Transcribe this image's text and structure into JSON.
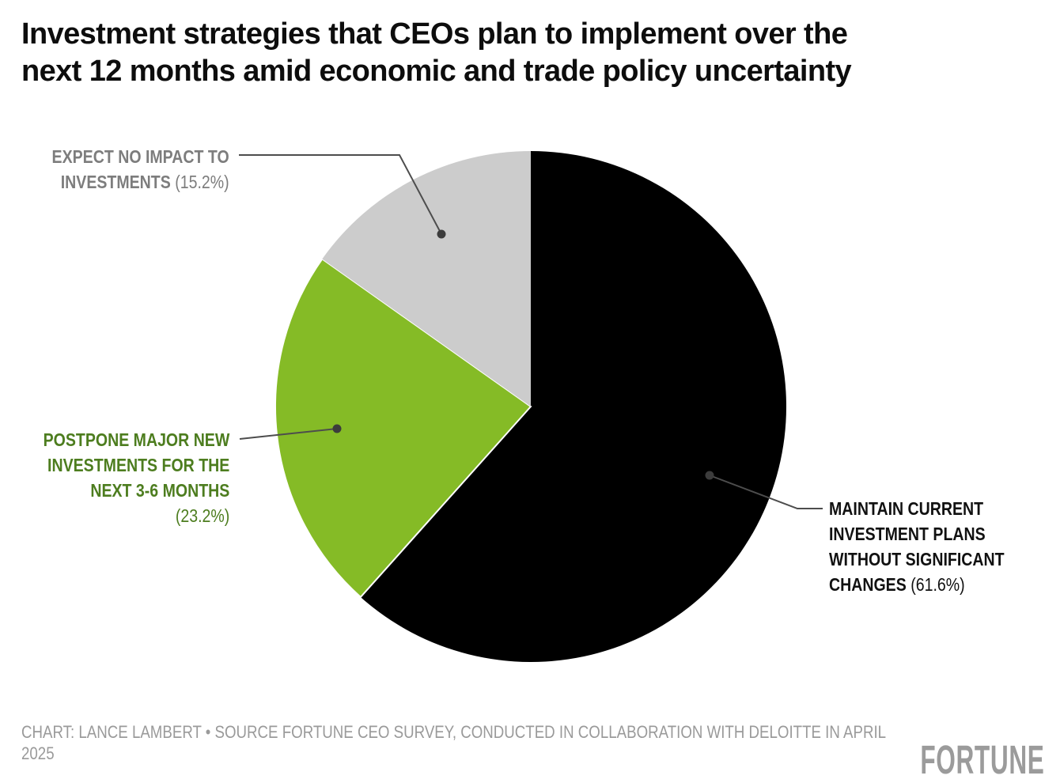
{
  "header": {
    "title_line1": "Investment strategies that CEOs plan to implement over the",
    "title_line2": "next 12 months amid economic and trade policy uncertainty"
  },
  "chart_data": {
    "type": "pie",
    "title": "Investment strategies that CEOs plan to implement over the next 12 months amid economic and trade policy uncertainty",
    "unit": "percent",
    "start_angle_deg": 0,
    "direction": "clockwise",
    "legend": "callout-labels",
    "slices": [
      {
        "id": "maintain-current",
        "label": "MAINTAIN CURRENT INVESTMENT PLANS WITHOUT SIGNIFICANT CHANGES",
        "value": 61.6,
        "color": "#000000"
      },
      {
        "id": "postpone",
        "label": "POSTPONE MAJOR NEW INVESTMENTS FOR THE NEXT 3-6 MONTHS",
        "value": 23.2,
        "color": "#85bb26",
        "stroke": "#ffffff"
      },
      {
        "id": "no-impact",
        "label": "EXPECT NO IMPACT TO INVESTMENTS",
        "value": 15.2,
        "color": "#cccccc"
      }
    ]
  },
  "callouts": [
    {
      "id": "maintain-current",
      "lines": [
        "MAINTAIN CURRENT",
        "INVESTMENT PLANS",
        "WITHOUT SIGNIFICANT"
      ],
      "last_bold": "CHANGES",
      "pct": "(61.6%)",
      "color": "#111111"
    },
    {
      "id": "postpone",
      "lines": [
        "POSTPONE MAJOR NEW",
        "INVESTMENTS FOR THE",
        "NEXT 3-6 MONTHS"
      ],
      "last_bold": "",
      "pct": "(23.2%)",
      "color": "#4d7d1f"
    },
    {
      "id": "no-impact",
      "lines": [
        "EXPECT NO IMPACT TO"
      ],
      "last_bold": "INVESTMENTS",
      "pct": "(15.2%)",
      "color": "#7d7d7d"
    }
  ],
  "footer": {
    "credit_line1": "CHART: LANCE LAMBERT • SOURCE FORTUNE CEO SURVEY, CONDUCTED IN COLLABORATION WITH DELOITTE IN APRIL",
    "credit_line2": "2025",
    "brand": "FORTUNE"
  },
  "colors": {
    "background": "#ffffff",
    "leader_line": "#4d4d4d",
    "leader_dot": "#3c3c3c"
  }
}
